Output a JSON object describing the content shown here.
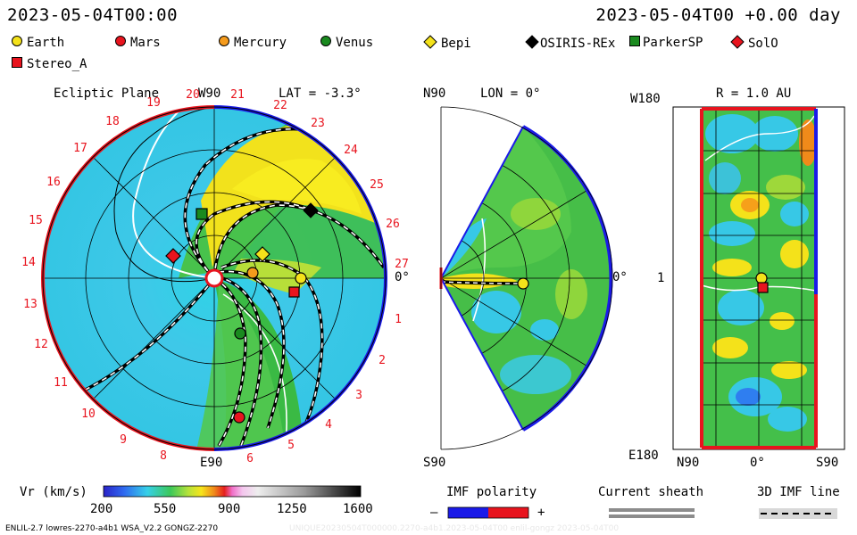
{
  "header": {
    "left_time": "2023-05-04T00:00",
    "right_time": "2023-05-04T00 +0.00 day"
  },
  "legend": [
    {
      "label": "Earth",
      "shape": "circle",
      "color": "#f4e21a"
    },
    {
      "label": "Mars",
      "shape": "circle",
      "color": "#e8141e"
    },
    {
      "label": "Mercury",
      "shape": "circle",
      "color": "#f59b1c"
    },
    {
      "label": "Venus",
      "shape": "circle",
      "color": "#1a8a1f"
    },
    {
      "label": "Bepi",
      "shape": "diamond",
      "color": "#f4e21a"
    },
    {
      "label": "OSIRIS-REx",
      "shape": "diamond",
      "color": "#000000"
    },
    {
      "label": "ParkerSP",
      "shape": "square",
      "color": "#1a8a1f"
    },
    {
      "label": "SolO",
      "shape": "diamond",
      "color": "#e8141e"
    },
    {
      "label": "Stereo_A",
      "shape": "square",
      "color": "#e8141e"
    }
  ],
  "ecliptic": {
    "title": "Ecliptic Plane",
    "w_label": "W90",
    "lat_label": "LAT = -3.3°",
    "e_label": "E90",
    "zero_label": "0°",
    "rotations": [
      "1",
      "2",
      "3",
      "4",
      "5",
      "6",
      "8",
      "9",
      "10",
      "11",
      "12",
      "13",
      "14",
      "15",
      "16",
      "17",
      "18",
      "19",
      "20",
      "21",
      "22",
      "23",
      "24",
      "25",
      "26",
      "27"
    ]
  },
  "meridional": {
    "title": "LON = 0°",
    "n_label": "N90",
    "s_label": "S90",
    "zero_label": "0°"
  },
  "lonlat": {
    "title": "R = 1.0 AU",
    "w_label": "W180",
    "e_label": "E180",
    "one_label": "1",
    "x_labels": [
      "N90",
      "0°",
      "S90"
    ]
  },
  "colorbar": {
    "label": "Vr (km/s)",
    "ticks": [
      "200",
      "550",
      "900",
      "1250",
      "1600"
    ]
  },
  "imf": {
    "label": "IMF polarity",
    "minus": "–",
    "plus": "+",
    "sheath_label": "Current sheath",
    "line_label": "3D IMF line"
  },
  "footer": {
    "left": "ENLIL-2.7 lowres-2270-a4b1 WSA_V2.2 GONGZ-2270",
    "right": "UNIQUE20230504T000000.2270-a4b1.2023-05-04T00 enlil-gongz 2023-05-04T00"
  }
}
